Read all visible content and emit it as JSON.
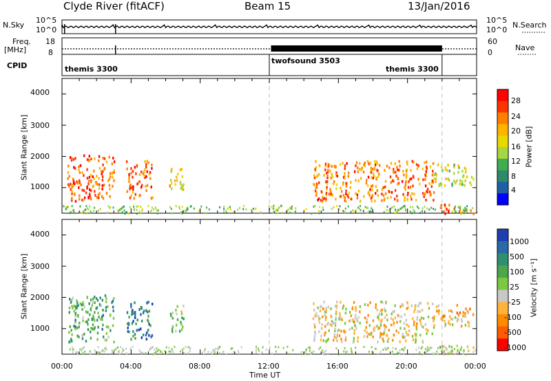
{
  "header": {
    "station": "Clyde River (fitACF)",
    "beam": "Beam 15",
    "date": "13/Jan/2016"
  },
  "top_panels": {
    "nsky_label": "N.Sky",
    "nsky_ticks": [
      "10^5",
      "10^0"
    ],
    "nsearch_label": "N.Search",
    "nsearch_ticks": [
      "10^5",
      "10^0"
    ],
    "freq_label": "Freq.",
    "freq_unit": "[MHz]",
    "freq_ticks": [
      "18",
      "8"
    ],
    "nave_label": "Nave",
    "nave_ticks": [
      "60",
      "0"
    ],
    "cpid_label": "CPID",
    "cpid_segments": [
      {
        "name": "themis 3300",
        "start_h": 0,
        "end_h": 12
      },
      {
        "name": "twofsound 3503",
        "start_h": 12,
        "end_h": 22
      },
      {
        "name": "themis 3300",
        "start_h": 22,
        "end_h": 24
      }
    ]
  },
  "axes": {
    "ylabel": "Slant Range [km]",
    "yticks": [
      "4000",
      "3000",
      "2000",
      "1000"
    ],
    "xlabel": "Time UT",
    "xticks": [
      "00:00",
      "04:00",
      "08:00",
      "12:00",
      "16:00",
      "20:00",
      "00:00"
    ]
  },
  "power_colorbar": {
    "label": "Power [dB]",
    "ticks": [
      "28",
      "24",
      "20",
      "16",
      "12",
      "8",
      "4"
    ],
    "colors": [
      "#ff0000",
      "#ff3300",
      "#ff7f00",
      "#ffb400",
      "#e8d800",
      "#a6d640",
      "#3fae4f",
      "#2f8a6b",
      "#1f5fa8",
      "#0000ff"
    ]
  },
  "velocity_colorbar": {
    "label": "Velocity [m s⁻¹]",
    "ticks": [
      "1000",
      "500",
      "100",
      "25",
      "-25",
      "-100",
      "-500",
      "-1000"
    ],
    "colors": [
      "#1e3fb0",
      "#2a6aa8",
      "#2f8f6f",
      "#4ca64c",
      "#7cc840",
      "#c8c8c8",
      "#ffb33a",
      "#ff8c00",
      "#ff5a00",
      "#ff0000"
    ]
  },
  "chart_data": {
    "type": "heatmap",
    "title": "Clyde River (fitACF)  Beam 15  13/Jan/2016",
    "xlabel": "Time UT",
    "ylabel": "Slant Range [km]",
    "xlim": [
      0,
      24
    ],
    "ylim": [
      180,
      4500
    ],
    "panels": [
      {
        "name": "Power",
        "unit": "dB",
        "scale": [
          0,
          32
        ],
        "regions": [
          {
            "t0": 0.3,
            "t1": 3.0,
            "r0": 600,
            "r1": 2100,
            "value": 26
          },
          {
            "t0": 3.7,
            "t1": 5.2,
            "r0": 700,
            "r1": 1900,
            "value": 26
          },
          {
            "t0": 6.2,
            "t1": 7.0,
            "r0": 900,
            "r1": 1800,
            "value": 18
          },
          {
            "t0": 14.5,
            "t1": 21.5,
            "r0": 600,
            "r1": 1900,
            "value": 24
          },
          {
            "t0": 21.5,
            "t1": 23.8,
            "r0": 1100,
            "r1": 1800,
            "value": 16
          },
          {
            "t0": 21.8,
            "t1": 23.8,
            "r0": 200,
            "r1": 500,
            "value": 26
          }
        ]
      },
      {
        "name": "Velocity",
        "unit": "m s-1",
        "scale": [
          -1000,
          1000
        ],
        "regions": [
          {
            "t0": 0.3,
            "t1": 3.0,
            "r0": 600,
            "r1": 2100,
            "value": 300
          },
          {
            "t0": 3.7,
            "t1": 5.2,
            "r0": 700,
            "r1": 1900,
            "value": 600
          },
          {
            "t0": 6.2,
            "t1": 7.0,
            "r0": 900,
            "r1": 1800,
            "value": 100
          },
          {
            "t0": 14.5,
            "t1": 21.5,
            "r0": 600,
            "r1": 1900,
            "value": -200
          },
          {
            "t0": 21.5,
            "t1": 23.8,
            "r0": 1100,
            "r1": 1800,
            "value": -300
          },
          {
            "t0": 21.8,
            "t1": 23.8,
            "r0": 200,
            "r1": 500,
            "value": -100
          }
        ]
      }
    ]
  }
}
